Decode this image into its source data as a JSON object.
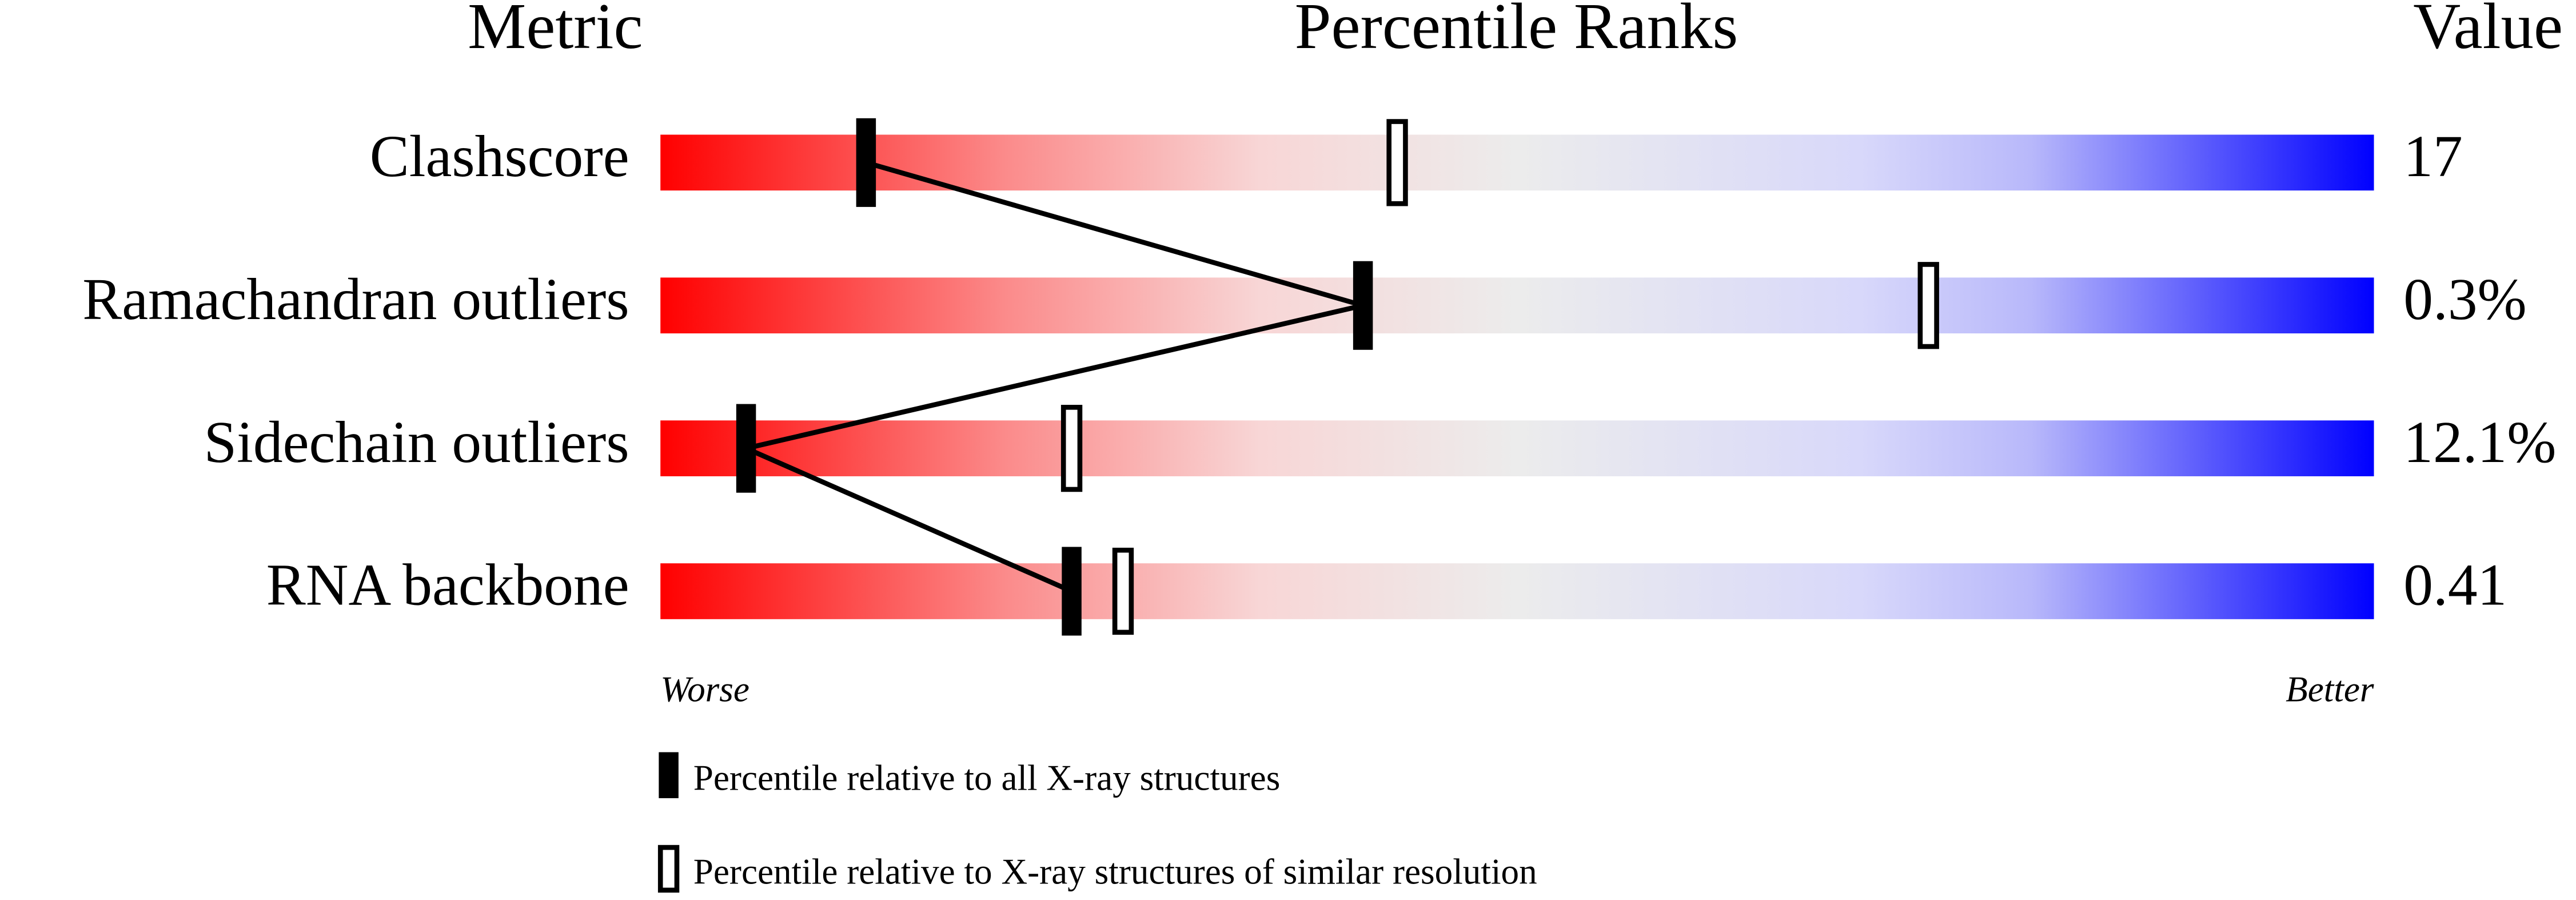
{
  "chart_data": {
    "type": "percentile",
    "headers": [
      "Metric",
      "Percentile Ranks",
      "Value"
    ],
    "categories": [
      "Clashscore",
      "Ramachandran outliers",
      "Sidechain outliers",
      "RNA backbone"
    ],
    "metric_values": [
      "17",
      "0.3%",
      "12.1%",
      "0.41"
    ],
    "series": [
      {
        "name": "Percentile relative to all X-ray structures",
        "color": "#000000",
        "marker": "filled",
        "values": [
          12,
          41,
          5,
          24
        ]
      },
      {
        "name": "Percentile relative to X-ray structures of similar resolution",
        "color": "#000000",
        "marker": "open",
        "values": [
          43,
          74,
          24,
          27
        ]
      }
    ],
    "xlim": [
      0,
      100
    ],
    "axis_ends": [
      "Worse",
      "Better"
    ]
  }
}
